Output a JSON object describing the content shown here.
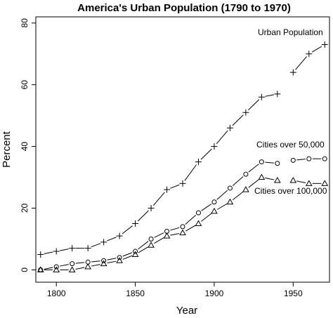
{
  "chart_data": {
    "type": "line",
    "title": "America's Urban Population (1790 to 1970)",
    "xlabel": "Year",
    "ylabel": "Percent",
    "xlim": [
      1787,
      1973
    ],
    "ylim": [
      -4,
      82
    ],
    "x_ticks": [
      1800,
      1850,
      1900,
      1950
    ],
    "y_ticks": [
      0,
      20,
      40,
      60,
      80
    ],
    "grid": false,
    "legend": "none (series labelled directly on the plot)",
    "series": [
      {
        "name": "Urban Population",
        "marker": "plus",
        "x": [
          1790,
          1800,
          1810,
          1820,
          1830,
          1840,
          1850,
          1860,
          1870,
          1880,
          1890,
          1900,
          1910,
          1920,
          1930,
          1940,
          1950,
          1960,
          1970
        ],
        "y": [
          5,
          6,
          7,
          7,
          9,
          11,
          15,
          20,
          26,
          28,
          35,
          40,
          46,
          51,
          56,
          57,
          64,
          70,
          73
        ]
      },
      {
        "name": "Cities over 50,000",
        "marker": "circle",
        "x": [
          1790,
          1800,
          1810,
          1820,
          1830,
          1840,
          1850,
          1860,
          1870,
          1880,
          1890,
          1900,
          1910,
          1920,
          1930,
          1940,
          1950,
          1960,
          1970
        ],
        "y": [
          0,
          1,
          2,
          2.5,
          3,
          4,
          6,
          10,
          12.5,
          14,
          18.5,
          22,
          26.5,
          31,
          35,
          34.5,
          35.5,
          36,
          36
        ]
      },
      {
        "name": "Cities over 100,000",
        "marker": "triangle",
        "x": [
          1790,
          1800,
          1810,
          1820,
          1830,
          1840,
          1850,
          1860,
          1870,
          1880,
          1890,
          1900,
          1910,
          1920,
          1930,
          1940,
          1950,
          1960,
          1970
        ],
        "y": [
          0,
          0,
          0,
          1,
          2,
          3,
          5,
          8,
          11,
          12,
          15,
          19,
          22,
          26,
          30,
          29,
          29,
          28,
          28
        ]
      }
    ],
    "segments": [
      [
        0,
        16
      ],
      [
        16,
        19
      ]
    ]
  }
}
